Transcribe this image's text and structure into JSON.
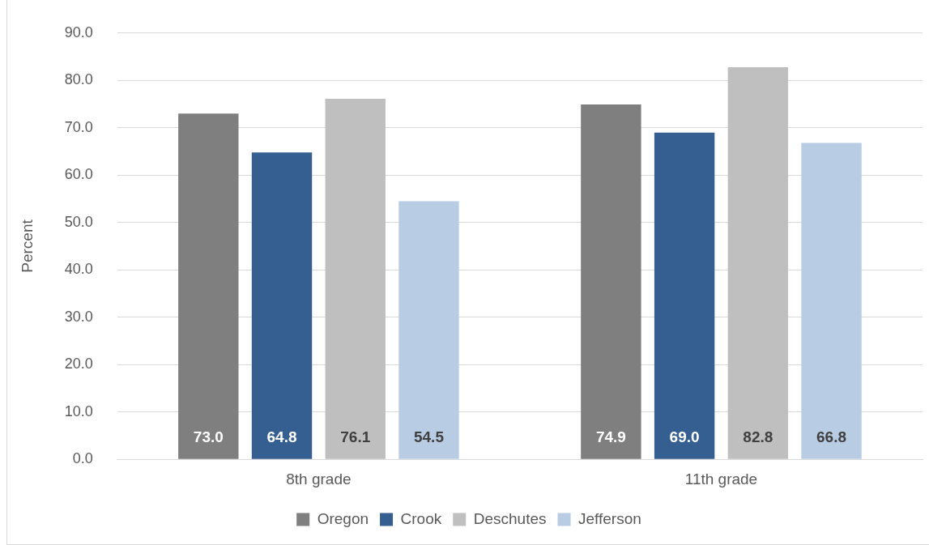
{
  "chart_data": {
    "type": "bar",
    "ylabel": "Percent",
    "categories": [
      "8th grade",
      "11th grade"
    ],
    "series": [
      {
        "name": "Oregon",
        "color": "#7f7f7f",
        "values": [
          73.0,
          74.9
        ],
        "value_labels": [
          "73.0",
          "74.9"
        ]
      },
      {
        "name": "Crook",
        "color": "#355f91",
        "values": [
          64.8,
          69.0
        ],
        "value_labels": [
          "64.8",
          "69.0"
        ]
      },
      {
        "name": "Deschutes",
        "color": "#bfbfbf",
        "values": [
          76.1,
          82.8
        ],
        "value_labels": [
          "76.1",
          "82.8"
        ]
      },
      {
        "name": "Jefferson",
        "color": "#b8cce4",
        "values": [
          54.5,
          66.8
        ],
        "value_labels": [
          "54.5",
          "66.8"
        ]
      }
    ],
    "ylim": [
      0,
      90
    ],
    "yticks": [
      {
        "value": 0,
        "label": "0.0"
      },
      {
        "value": 10,
        "label": "10.0"
      },
      {
        "value": 20,
        "label": "20.0"
      },
      {
        "value": 30,
        "label": "30.0"
      },
      {
        "value": 40,
        "label": "40.0"
      },
      {
        "value": 50,
        "label": "50.0"
      },
      {
        "value": 60,
        "label": "60.0"
      },
      {
        "value": 70,
        "label": "70.0"
      },
      {
        "value": 80,
        "label": "80.0"
      },
      {
        "value": 90,
        "label": "90.0"
      }
    ],
    "grid": "y",
    "legend": "bottom"
  }
}
